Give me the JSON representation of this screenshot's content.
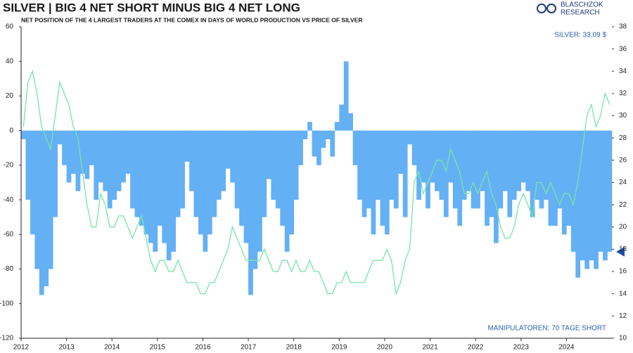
{
  "chart_data": {
    "type": "combo",
    "title": "SILVER | BIG 4 NET SHORT MINUS BIG 4 NET LONG",
    "subtitle": "NET POSITION OF THE 4 LARGEST TRADERS AT THE COMEX IN DAYS OF WORLD PRODUCTION VS PRICE OF SILVER",
    "brand": [
      "BLASCHZOK",
      "RESEARCH"
    ],
    "annotations": [
      "SILVER: 33,09 $",
      "MANIPULATOREN: 70 TAGE SHORT"
    ],
    "x": [
      2012,
      2012.1,
      2012.2,
      2012.3,
      2012.4,
      2012.5,
      2012.6,
      2012.7,
      2012.8,
      2012.9,
      2013,
      2013.1,
      2013.2,
      2013.3,
      2013.4,
      2013.5,
      2013.6,
      2013.7,
      2013.8,
      2013.9,
      2014,
      2014.1,
      2014.2,
      2014.3,
      2014.4,
      2014.5,
      2014.6,
      2014.7,
      2014.8,
      2014.9,
      2015,
      2015.1,
      2015.2,
      2015.3,
      2015.4,
      2015.5,
      2015.6,
      2015.7,
      2015.8,
      2015.9,
      2016,
      2016.1,
      2016.2,
      2016.3,
      2016.4,
      2016.5,
      2016.6,
      2016.7,
      2016.8,
      2016.9,
      2017,
      2017.1,
      2017.2,
      2017.3,
      2017.4,
      2017.5,
      2017.6,
      2017.7,
      2017.8,
      2017.9,
      2018,
      2018.1,
      2018.2,
      2018.3,
      2018.4,
      2018.5,
      2018.6,
      2018.7,
      2018.8,
      2018.9,
      2019,
      2019.1,
      2019.2,
      2019.3,
      2019.4,
      2019.5,
      2019.6,
      2019.7,
      2019.8,
      2019.9,
      2020,
      2020.1,
      2020.2,
      2020.3,
      2020.4,
      2020.5,
      2020.6,
      2020.7,
      2020.8,
      2020.9,
      2021,
      2021.1,
      2021.2,
      2021.3,
      2021.4,
      2021.5,
      2021.6,
      2021.7,
      2021.8,
      2021.9,
      2022,
      2022.1,
      2022.2,
      2022.3,
      2022.4,
      2022.5,
      2022.6,
      2022.7,
      2022.8,
      2022.9,
      2023,
      2023.1,
      2023.2,
      2023.3,
      2023.4,
      2023.5,
      2023.6,
      2023.7,
      2023.8,
      2023.9,
      2024,
      2024.1,
      2024.2,
      2024.3,
      2024.4,
      2024.5,
      2024.6,
      2024.7,
      2024.8,
      2024.9
    ],
    "xlim": [
      2012,
      2025
    ],
    "xticks": [
      2012,
      2013,
      2014,
      2015,
      2016,
      2017,
      2018,
      2019,
      2020,
      2021,
      2022,
      2023,
      2024
    ],
    "ylim": [
      -120,
      60
    ],
    "yticks": [
      -120,
      -100,
      -80,
      -60,
      -40,
      -20,
      0,
      20,
      40,
      60
    ],
    "y2lim": [
      10,
      38
    ],
    "y2ticks": [
      10,
      12,
      14,
      16,
      18,
      20,
      22,
      24,
      26,
      28,
      30,
      32,
      34,
      36,
      38
    ],
    "series": [
      {
        "type": "bar",
        "color": "#64b0f5",
        "values": [
          -5,
          -40,
          -60,
          -80,
          -95,
          -90,
          -80,
          -50,
          -8,
          -20,
          -30,
          -25,
          -35,
          -25,
          -28,
          -20,
          -40,
          -30,
          -35,
          -45,
          -40,
          -35,
          -30,
          -25,
          -45,
          -50,
          -55,
          -60,
          -65,
          -70,
          -55,
          -65,
          -75,
          -70,
          -50,
          -45,
          -18,
          -35,
          -50,
          -60,
          -70,
          -60,
          -50,
          -40,
          -35,
          -22,
          -30,
          -45,
          -55,
          -65,
          -95,
          -80,
          -70,
          -50,
          -28,
          -40,
          -45,
          -55,
          -70,
          -60,
          -40,
          -20,
          -5,
          5,
          -15,
          -20,
          -10,
          -5,
          -15,
          5,
          15,
          40,
          10,
          -20,
          -40,
          -50,
          -45,
          -60,
          -40,
          -55,
          -60,
          -40,
          -45,
          -25,
          -50,
          -8,
          -20,
          -40,
          -30,
          -45,
          -30,
          -35,
          -40,
          -50,
          -30,
          -45,
          -55,
          -40,
          -35,
          -45,
          -45,
          -35,
          -55,
          -50,
          -65,
          -45,
          -35,
          -50,
          -40,
          -35,
          -30,
          -35,
          -50,
          -40,
          -45,
          -40,
          -55,
          -55,
          -45,
          -60,
          -55,
          -70,
          -85,
          -75,
          -80,
          -75,
          -80,
          -70,
          -75,
          -70
        ]
      },
      {
        "type": "line",
        "axis": "y2",
        "color": "#74e6a6",
        "values": [
          29,
          33,
          34,
          32,
          29,
          28,
          27,
          30,
          33,
          32,
          31,
          29,
          28,
          25,
          22,
          20,
          20,
          23,
          22,
          20,
          20,
          21,
          21,
          20,
          19,
          20,
          21,
          19,
          17,
          16,
          17,
          17,
          16,
          16,
          17,
          16,
          15,
          15,
          15,
          14,
          14,
          15,
          15,
          16,
          17,
          18,
          20,
          19,
          18,
          17,
          17,
          17,
          17,
          18,
          17,
          16,
          16,
          17,
          17,
          16,
          17,
          16,
          16,
          17,
          16,
          16,
          15,
          14,
          14,
          15,
          15,
          16,
          15,
          15,
          15,
          15,
          16,
          17,
          17,
          17,
          18,
          17,
          14,
          15,
          17,
          18,
          24,
          25,
          23,
          24,
          25,
          26,
          26,
          25,
          27,
          26,
          25,
          23,
          23,
          24,
          23,
          24,
          25,
          23,
          22,
          20,
          19,
          19,
          20,
          22,
          23,
          22,
          21,
          24,
          24,
          23,
          24,
          23,
          22,
          23,
          23,
          22,
          24,
          27,
          30,
          31,
          29,
          30,
          32,
          31
        ]
      }
    ]
  }
}
